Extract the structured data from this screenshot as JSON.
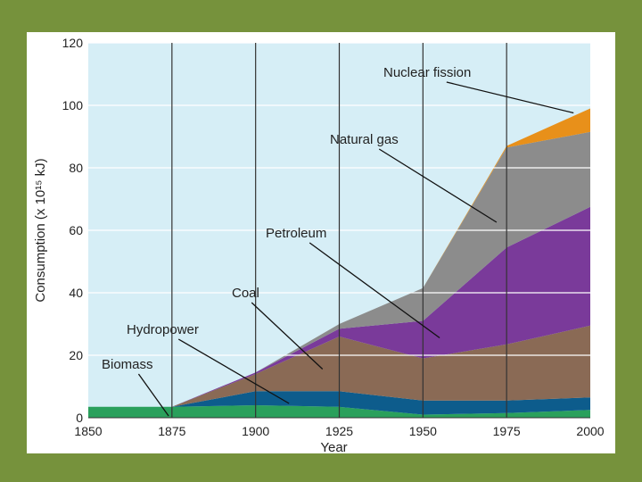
{
  "colors": {
    "slide_background": "#76923c",
    "plot_background": "#d6eef6",
    "grid": "#ffffff",
    "annotation_line": "#111111"
  },
  "chart_data": {
    "type": "area",
    "stacked": true,
    "title": "",
    "xlabel": "Year",
    "ylabel": "Consumption (x 10¹⁵ kJ)",
    "x": [
      1850,
      1875,
      1900,
      1925,
      1950,
      1975,
      2000
    ],
    "xlim": [
      1850,
      2000
    ],
    "ylim": [
      0,
      120
    ],
    "x_ticks": [
      "1850",
      "1875",
      "1900",
      "1925",
      "1950",
      "1975",
      "2000"
    ],
    "y_ticks": [
      "0",
      "20",
      "40",
      "60",
      "80",
      "100",
      "120"
    ],
    "grid": true,
    "legend": "none; series labelled by callout lines",
    "series": [
      {
        "name": "Biomass",
        "color": "#2aa05c",
        "values": [
          3.5,
          3.5,
          4.0,
          3.5,
          1.0,
          1.5,
          2.5
        ]
      },
      {
        "name": "Hydropower",
        "color": "#0d5c8c",
        "values": [
          0.0,
          0.0,
          4.5,
          5.0,
          4.5,
          4.0,
          4.0
        ]
      },
      {
        "name": "Coal",
        "color": "#8a6a55",
        "values": [
          0.0,
          0.0,
          5.5,
          17.5,
          13.5,
          18.0,
          23.0
        ]
      },
      {
        "name": "Petroleum",
        "color": "#7a3a9a",
        "values": [
          0.0,
          0.0,
          0.5,
          2.5,
          12.0,
          31.0,
          38.0
        ]
      },
      {
        "name": "Natural gas",
        "color": "#8c8c8c",
        "values": [
          0.0,
          0.0,
          0.0,
          1.5,
          10.5,
          32.0,
          24.0
        ]
      },
      {
        "name": "Nuclear fission",
        "color": "#e8901a",
        "values": [
          0.0,
          0.0,
          0.0,
          0.0,
          0.0,
          0.5,
          7.5
        ]
      }
    ],
    "annotations": [
      {
        "label": "Nuclear fission",
        "year": 1995,
        "value": 97
      },
      {
        "label": "Natural gas",
        "year": 1972,
        "value": 62
      },
      {
        "label": "Petroleum",
        "year": 1955,
        "value": 25
      },
      {
        "label": "Coal",
        "year": 1920,
        "value": 15
      },
      {
        "label": "Hydropower",
        "year": 1910,
        "value": 4
      },
      {
        "label": "Biomass",
        "year": 1874,
        "value": 0
      }
    ]
  }
}
